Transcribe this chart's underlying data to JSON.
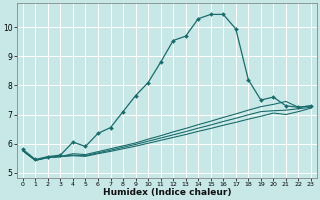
{
  "xlabel": "Humidex (Indice chaleur)",
  "bg_color": "#c8e8e8",
  "grid_color": "#ffffff",
  "line_color": "#1a6b6b",
  "xlim": [
    -0.5,
    23.5
  ],
  "ylim": [
    4.8,
    10.85
  ],
  "xticks": [
    0,
    1,
    2,
    3,
    4,
    5,
    6,
    7,
    8,
    9,
    10,
    11,
    12,
    13,
    14,
    15,
    16,
    17,
    18,
    19,
    20,
    21,
    22,
    23
  ],
  "yticks": [
    5,
    6,
    7,
    8,
    9,
    10
  ],
  "series0": [
    5.8,
    5.45,
    5.55,
    5.6,
    6.05,
    5.9,
    6.35,
    6.55,
    7.1,
    7.65,
    8.1,
    8.8,
    9.55,
    9.7,
    10.3,
    10.45,
    10.45,
    9.95,
    8.2,
    7.5,
    7.6,
    7.3,
    7.25,
    7.3
  ],
  "series1": [
    5.75,
    5.42,
    5.52,
    5.55,
    5.65,
    5.62,
    5.72,
    5.82,
    5.92,
    6.02,
    6.15,
    6.27,
    6.4,
    6.52,
    6.65,
    6.77,
    6.9,
    7.02,
    7.15,
    7.27,
    7.35,
    7.45,
    7.25,
    7.3
  ],
  "series2": [
    5.75,
    5.42,
    5.52,
    5.55,
    5.6,
    5.58,
    5.68,
    5.77,
    5.87,
    5.97,
    6.08,
    6.19,
    6.3,
    6.41,
    6.53,
    6.64,
    6.76,
    6.87,
    6.99,
    7.1,
    7.13,
    7.15,
    7.2,
    7.25
  ],
  "series3": [
    5.75,
    5.42,
    5.52,
    5.55,
    5.58,
    5.56,
    5.65,
    5.73,
    5.82,
    5.91,
    6.01,
    6.11,
    6.21,
    6.31,
    6.42,
    6.52,
    6.63,
    6.73,
    6.84,
    6.94,
    7.05,
    7.0,
    7.1,
    7.22
  ]
}
